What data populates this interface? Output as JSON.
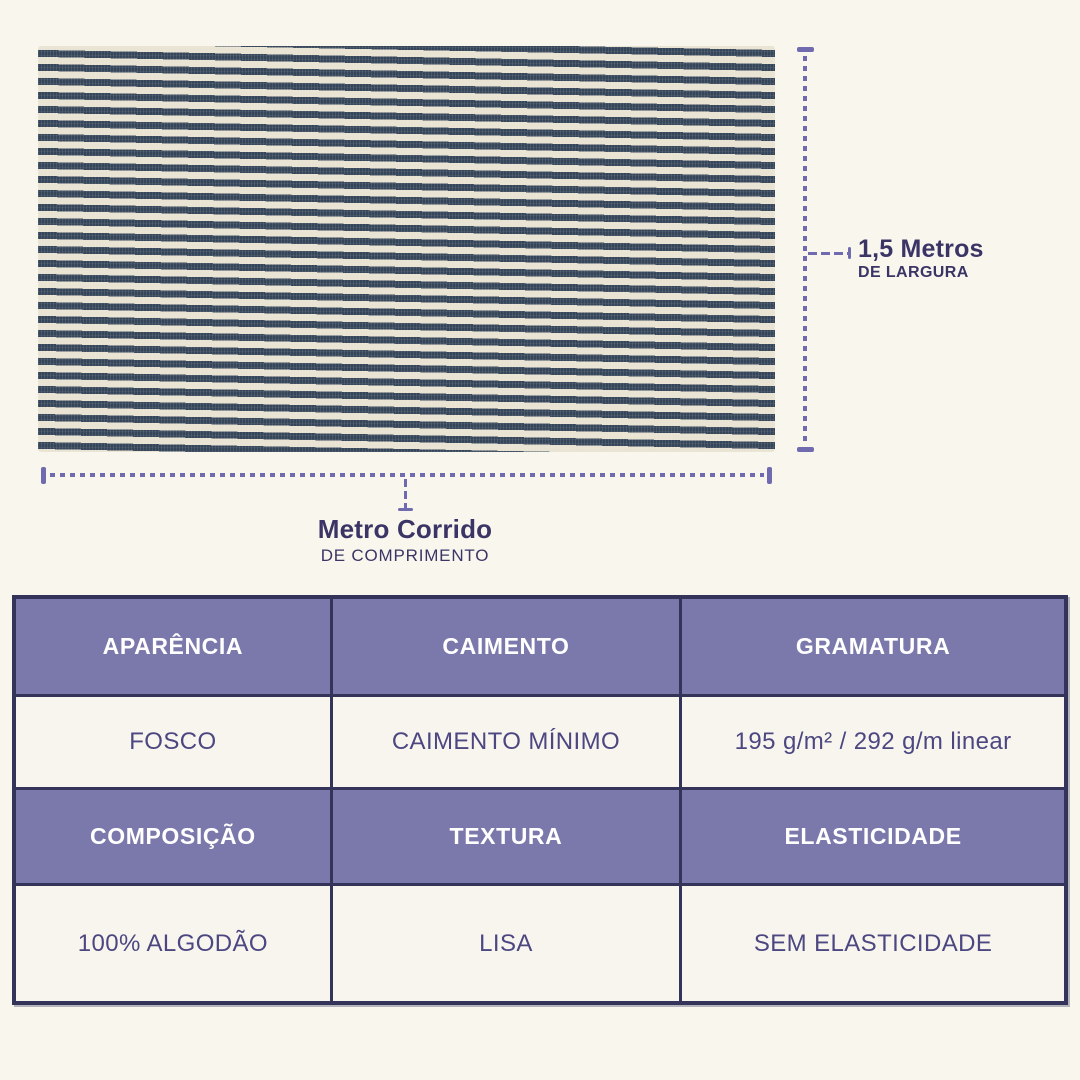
{
  "theme": {
    "page_bg": "#f9f6ee",
    "dim_line_color": "#6f6bae",
    "dim_text_color": "#3b3566",
    "stripe_dark": "#36465a",
    "stripe_light": "#e9e3d3",
    "table_border": "#34335a",
    "header_bg": "#7b79ab",
    "header_text": "#ffffff",
    "value_bg": "#f8f5ee",
    "value_text": "#4c4781"
  },
  "dimensions": {
    "width": {
      "label": "1,5 Metros",
      "sublabel": "DE LARGURA"
    },
    "length": {
      "label": "Metro Corrido",
      "sublabel": "DE COMPRIMENTO"
    }
  },
  "table": {
    "rows": [
      {
        "type": "header",
        "cells": [
          "APARÊNCIA",
          "CAIMENTO",
          "GRAMATURA"
        ]
      },
      {
        "type": "value",
        "cells": [
          "FOSCO",
          "CAIMENTO MÍNIMO",
          "195 g/m² / 292 g/m linear"
        ]
      },
      {
        "type": "header",
        "cells": [
          "COMPOSIÇÃO",
          "TEXTURA",
          "ELASTICIDADE"
        ]
      },
      {
        "type": "value",
        "cells": [
          "100% ALGODÃO",
          "LISA",
          "SEM ELASTICIDADE"
        ]
      }
    ]
  }
}
